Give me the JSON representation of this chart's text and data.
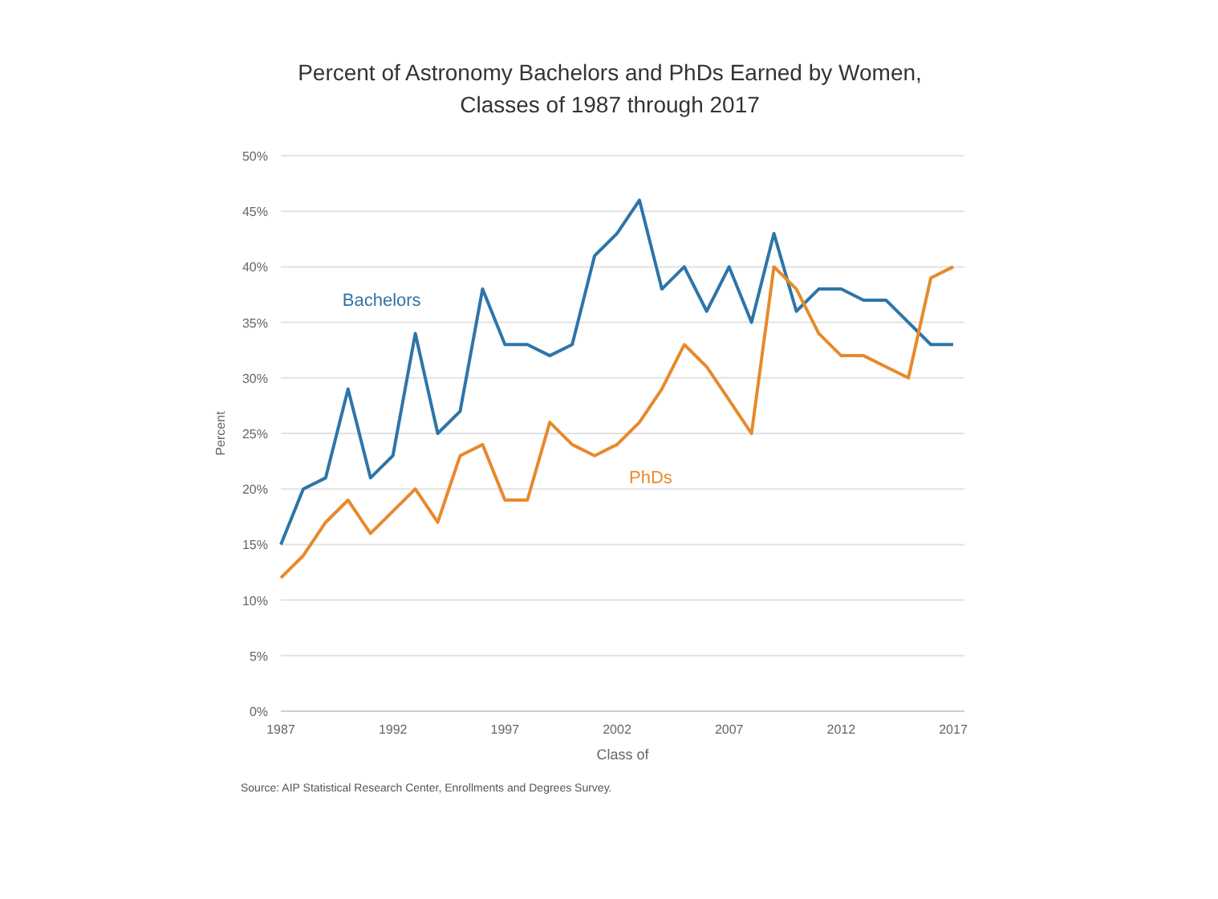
{
  "chart_data": {
    "type": "line",
    "title": "Percent of Astronomy Bachelors and PhDs Earned by Women,\nClasses of 1987 through 2017",
    "xlabel": "Class of",
    "ylabel": "Percent",
    "x": [
      1987,
      1988,
      1989,
      1990,
      1991,
      1992,
      1993,
      1994,
      1995,
      1996,
      1997,
      1998,
      1999,
      2000,
      2001,
      2002,
      2003,
      2004,
      2005,
      2006,
      2007,
      2008,
      2009,
      2010,
      2011,
      2012,
      2013,
      2014,
      2015,
      2016,
      2017
    ],
    "series": [
      {
        "name": "Bachelors",
        "color": "#2e75a8",
        "values": [
          15,
          20,
          21,
          29,
          21,
          23,
          34,
          25,
          27,
          38,
          33,
          33,
          32,
          33,
          41,
          43,
          46,
          38,
          40,
          36,
          40,
          35,
          43,
          36,
          38,
          38,
          37,
          37,
          35,
          33,
          33
        ]
      },
      {
        "name": "PhDs",
        "color": "#e8892b",
        "values": [
          12,
          14,
          17,
          19,
          16,
          18,
          20,
          17,
          23,
          24,
          19,
          19,
          26,
          24,
          23,
          24,
          26,
          29,
          33,
          31,
          28,
          25,
          40,
          38,
          34,
          32,
          32,
          31,
          30,
          39,
          40
        ]
      }
    ],
    "xlim": [
      1987,
      2017.5
    ],
    "xticks": [
      1987,
      1992,
      1997,
      2002,
      2007,
      2012,
      2017
    ],
    "ylim": [
      0,
      50
    ],
    "yticks": [
      {
        "value": 0,
        "label": "0%"
      },
      {
        "value": 5,
        "label": "5%"
      },
      {
        "value": 10,
        "label": "10%"
      },
      {
        "value": 15,
        "label": "15%"
      },
      {
        "value": 20,
        "label": "20%"
      },
      {
        "value": 25,
        "label": "25%"
      },
      {
        "value": 30,
        "label": "30%"
      },
      {
        "value": 35,
        "label": "35%"
      },
      {
        "value": 40,
        "label": "40%"
      },
      {
        "value": 45,
        "label": "45%"
      },
      {
        "value": 50,
        "label": "50%"
      }
    ],
    "grid": "y",
    "legend": false,
    "marker": "none",
    "line_style": "solid",
    "annotations": [
      "Source: AIP Statistical Research Center, Enrollments and Degrees Survey."
    ]
  }
}
